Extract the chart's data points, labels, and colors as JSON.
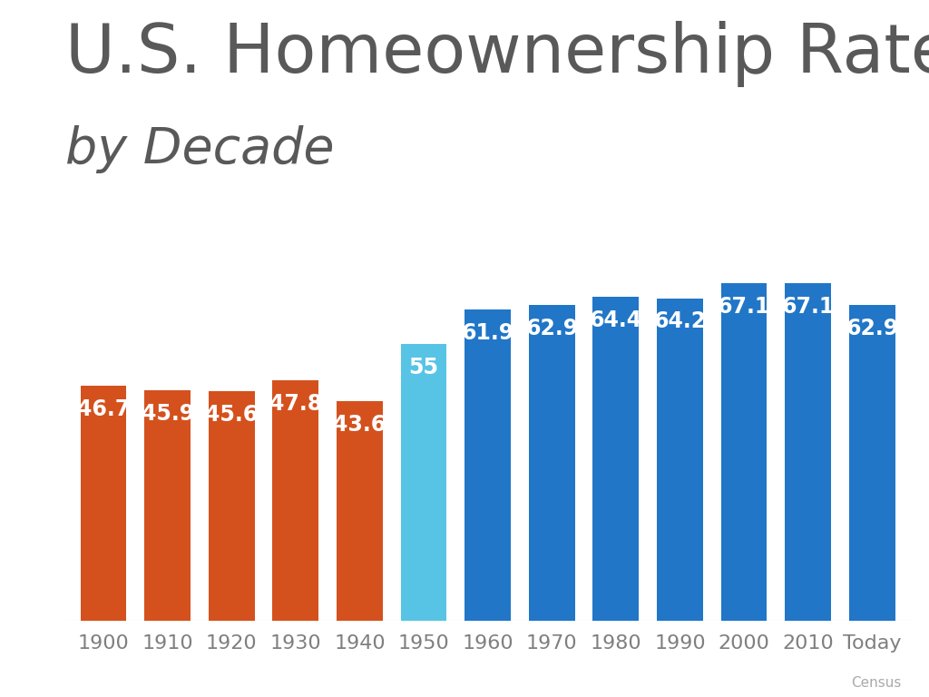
{
  "categories": [
    "1900",
    "1910",
    "1920",
    "1930",
    "1940",
    "1950",
    "1960",
    "1970",
    "1980",
    "1990",
    "2000",
    "2010",
    "Today"
  ],
  "values": [
    46.7,
    45.9,
    45.6,
    47.8,
    43.6,
    55.0,
    61.9,
    62.9,
    64.4,
    64.2,
    67.1,
    67.1,
    62.9
  ],
  "bar_labels": [
    "46.7",
    "45.9",
    "45.6",
    "47.8",
    "43.6",
    "55",
    "61.9",
    "62.9",
    "64.4",
    "64.2",
    "67.1",
    "67.1",
    "62.9"
  ],
  "bar_colors": [
    "#D4511E",
    "#D4511E",
    "#D4511E",
    "#D4511E",
    "#D4511E",
    "#57C4E5",
    "#2176C7",
    "#2176C7",
    "#2176C7",
    "#2176C7",
    "#2176C7",
    "#2176C7",
    "#2176C7"
  ],
  "title_line1": "U.S. Homeownership Rate",
  "title_line2": "by Decade",
  "title_color": "#595959",
  "label_color": "#ffffff",
  "xlabel_color": "#7f7f7f",
  "source_text": "Census",
  "background_color": "#ffffff",
  "ylim": [
    0,
    75
  ],
  "title_fontsize1": 54,
  "title_fontsize2": 40,
  "bar_label_fontsize": 17,
  "xtick_fontsize": 16,
  "source_fontsize": 11
}
